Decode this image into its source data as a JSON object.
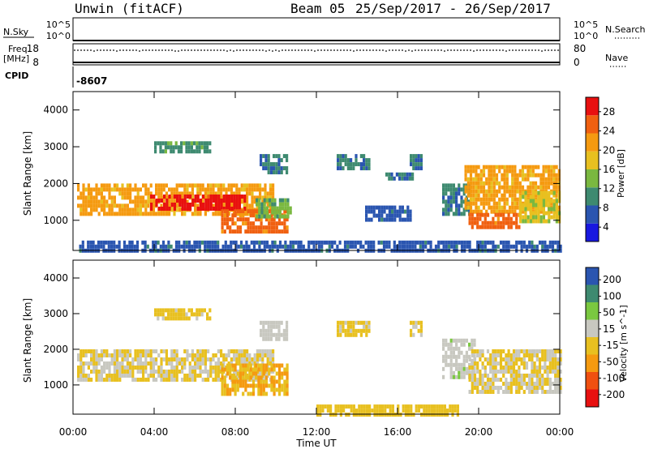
{
  "header": {
    "station": "Unwin (fitACF)",
    "beam": "Beam 05",
    "dates": "25/Sep/2017 - 26/Sep/2017"
  },
  "strips": {
    "nsky_label": "N.Sky",
    "nsky_ticks": [
      "10^5",
      "10^0"
    ],
    "nsearch_label": "N.Search",
    "nsearch_ticks": [
      "10^5",
      "10^0"
    ],
    "freq_label": "Freq.",
    "freq_unit": "[MHz]",
    "freq_ticks": [
      "18",
      "8"
    ],
    "freq_value": 16.7,
    "nave_label": "Nave",
    "nave_ticks": [
      "80",
      "0"
    ],
    "nave_value": 0,
    "cpid_label": "CPID",
    "cpid_value": "-8607"
  },
  "x_axis": {
    "ticks": [
      "00:00",
      "04:00",
      "08:00",
      "12:00",
      "16:00",
      "20:00",
      "00:00"
    ],
    "label": "Time UT"
  },
  "colors": {
    "power": [
      "#1818e0",
      "#2a55b0",
      "#3e8a70",
      "#7ab840",
      "#e8c020",
      "#f59a10",
      "#f06010",
      "#e81010"
    ],
    "velocity": [
      "#e81010",
      "#f05010",
      "#f59a10",
      "#e8c020",
      "#c8c8c0",
      "#7ac840",
      "#3e8a70",
      "#2a55b0"
    ]
  },
  "chart_data": [
    {
      "type": "heatmap",
      "panel": "power",
      "ylabel": "Slant Range [km]",
      "yticks": [
        "4000",
        "3000",
        "2000",
        "1000"
      ],
      "ylim": [
        180,
        4500
      ],
      "xlim": [
        0,
        24
      ],
      "xticks_hours": [
        0,
        4,
        8,
        12,
        16,
        20,
        24
      ],
      "colorbar": {
        "label": "Power [dB]",
        "ticks": [
          "28",
          "24",
          "20",
          "16",
          "12",
          "8",
          "4"
        ],
        "range": [
          0,
          30
        ]
      },
      "regions": [
        {
          "t0": 0.2,
          "t1": 9.8,
          "r0": 1150,
          "r1": 2000,
          "val": 20
        },
        {
          "t0": 3.8,
          "t1": 8.5,
          "r0": 1300,
          "r1": 1700,
          "val": 28
        },
        {
          "t0": 7.3,
          "t1": 10.6,
          "r0": 700,
          "r1": 1300,
          "val": 24
        },
        {
          "t0": 9.0,
          "t1": 10.7,
          "r0": 1150,
          "r1": 1600,
          "val": 12
        },
        {
          "t0": 4.0,
          "t1": 6.7,
          "r0": 2900,
          "r1": 3150,
          "val": 10
        },
        {
          "t0": 9.2,
          "t1": 10.6,
          "r0": 2250,
          "r1": 2800,
          "val": 8
        },
        {
          "t0": 13.0,
          "t1": 14.6,
          "r0": 2400,
          "r1": 2800,
          "val": 8
        },
        {
          "t0": 15.4,
          "t1": 16.7,
          "r0": 2100,
          "r1": 2300,
          "val": 8
        },
        {
          "t0": 14.4,
          "t1": 16.6,
          "r0": 1000,
          "r1": 1400,
          "val": 6
        },
        {
          "t0": 16.6,
          "t1": 17.2,
          "r0": 2400,
          "r1": 2800,
          "val": 8
        },
        {
          "t0": 18.2,
          "t1": 19.5,
          "r0": 1200,
          "r1": 2000,
          "val": 8
        },
        {
          "t0": 19.3,
          "t1": 24.0,
          "r0": 1200,
          "r1": 2500,
          "val": 20
        },
        {
          "t0": 19.5,
          "t1": 22.0,
          "r0": 800,
          "r1": 1200,
          "val": 24
        },
        {
          "t0": 22.0,
          "t1": 24.0,
          "r0": 1000,
          "r1": 1800,
          "val": 16
        },
        {
          "t0": 0.3,
          "t1": 24.0,
          "r0": 180,
          "r1": 450,
          "val": 6
        }
      ]
    },
    {
      "type": "heatmap",
      "panel": "velocity",
      "ylabel": "Slant Range [km]",
      "yticks": [
        "4000",
        "3000",
        "2000",
        "1000"
      ],
      "ylim": [
        180,
        4500
      ],
      "xlim": [
        0,
        24
      ],
      "xticks_hours": [
        0,
        4,
        8,
        12,
        16,
        20,
        24
      ],
      "colorbar": {
        "label": "Velocity [m s^-1]",
        "ticks": [
          "200",
          "100",
          "50",
          "15",
          "-15",
          "-50",
          "-100",
          "-200"
        ],
        "range": [
          -250,
          250
        ]
      },
      "regions": [
        {
          "t0": 0.2,
          "t1": 9.8,
          "r0": 1150,
          "r1": 2000,
          "val": 0
        },
        {
          "t0": 7.3,
          "t1": 10.6,
          "r0": 700,
          "r1": 1600,
          "val": -60
        },
        {
          "t0": 4.0,
          "t1": 6.7,
          "r0": 2900,
          "r1": 3150,
          "val": -20
        },
        {
          "t0": 9.2,
          "t1": 10.6,
          "r0": 2250,
          "r1": 2800,
          "val": 30
        },
        {
          "t0": 13.0,
          "t1": 14.6,
          "r0": 2400,
          "r1": 2800,
          "val": -20
        },
        {
          "t0": 16.6,
          "t1": 17.2,
          "r0": 2400,
          "r1": 2800,
          "val": 0
        },
        {
          "t0": 18.2,
          "t1": 19.8,
          "r0": 1200,
          "r1": 2300,
          "val": 40
        },
        {
          "t0": 19.5,
          "t1": 24.0,
          "r0": 800,
          "r1": 2000,
          "val": 0
        },
        {
          "t0": 12.0,
          "t1": 19.0,
          "r0": 180,
          "r1": 450,
          "val": -30
        }
      ]
    }
  ]
}
